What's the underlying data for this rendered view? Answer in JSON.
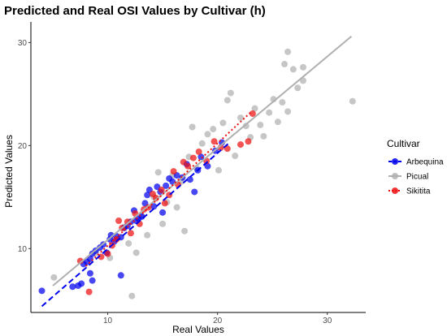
{
  "chart_data": {
    "type": "scatter",
    "title": "Predicted and Real OSI Values by Cultivar (h)",
    "xlabel": "Real Values",
    "ylabel": "Predicted Values",
    "xlim": [
      3,
      33.5
    ],
    "ylim": [
      3.8,
      32
    ],
    "xticks": [
      10,
      20,
      30
    ],
    "yticks": [
      10,
      20,
      30
    ],
    "grid": false,
    "legend_title": "Cultivar",
    "legend_position": "right",
    "series": [
      {
        "name": "Arbequina",
        "color": "#0000ee",
        "marker": "circle",
        "fit_line": {
          "style": "dashed",
          "x": [
            4,
            21
          ],
          "y": [
            4.4,
            20.2
          ]
        },
        "points": [
          [
            4,
            5.9
          ],
          [
            6.8,
            6.3
          ],
          [
            7.3,
            6.4
          ],
          [
            7.6,
            6.6
          ],
          [
            7.8,
            8.5
          ],
          [
            8.1,
            8.7
          ],
          [
            8.4,
            9.0
          ],
          [
            8.4,
            7.6
          ],
          [
            8.6,
            6.9
          ],
          [
            8.6,
            9.5
          ],
          [
            8.9,
            9.8
          ],
          [
            9.3,
            10.1
          ],
          [
            9.6,
            10.4
          ],
          [
            9.9,
            9.6
          ],
          [
            10.2,
            10.9
          ],
          [
            10.3,
            11.3
          ],
          [
            10.6,
            10.7
          ],
          [
            10.8,
            11.2
          ],
          [
            11.2,
            7.4
          ],
          [
            11.2,
            11.1
          ],
          [
            11.5,
            12.0
          ],
          [
            11.8,
            12.2
          ],
          [
            12.1,
            12.6
          ],
          [
            12.4,
            13.7
          ],
          [
            12.6,
            12.7
          ],
          [
            12.8,
            12.9
          ],
          [
            13.1,
            13.1
          ],
          [
            13.4,
            14.4
          ],
          [
            13.6,
            15.2
          ],
          [
            13.8,
            15.7
          ],
          [
            14.2,
            14.1
          ],
          [
            14.5,
            16.0
          ],
          [
            14.8,
            15.5
          ],
          [
            15.0,
            13.5
          ],
          [
            15.3,
            16.1
          ],
          [
            15.6,
            16.8
          ],
          [
            15.9,
            16.5
          ],
          [
            16.3,
            17.1
          ],
          [
            16.8,
            16.9
          ],
          [
            17.2,
            18.2
          ],
          [
            17.5,
            16.7
          ],
          [
            17.9,
            15.5
          ],
          [
            18.2,
            17.6
          ],
          [
            18.5,
            18.9
          ],
          [
            19.1,
            18.0
          ],
          [
            19.8,
            19.5
          ],
          [
            20.4,
            20.3
          ]
        ]
      },
      {
        "name": "Picual",
        "color": "#b0b0b0",
        "marker": "circle",
        "fit_line": {
          "style": "solid",
          "x": [
            5,
            32.2
          ],
          "y": [
            6.4,
            30.6
          ]
        },
        "points": [
          [
            5.1,
            7.2
          ],
          [
            8.9,
            9.6
          ],
          [
            10.2,
            9.1
          ],
          [
            11.5,
            12.1
          ],
          [
            11.9,
            10.5
          ],
          [
            12.2,
            5.4
          ],
          [
            12.6,
            9.6
          ],
          [
            13.1,
            13.2
          ],
          [
            13.6,
            11.3
          ],
          [
            14.2,
            15.0
          ],
          [
            14.6,
            17.4
          ],
          [
            15.0,
            12.4
          ],
          [
            15.4,
            14.5
          ],
          [
            15.9,
            17.1
          ],
          [
            16.3,
            14.0
          ],
          [
            16.7,
            16.5
          ],
          [
            17.0,
            11.7
          ],
          [
            17.4,
            18.9
          ],
          [
            17.7,
            21.8
          ],
          [
            18.1,
            17.8
          ],
          [
            18.6,
            20.2
          ],
          [
            19.1,
            21.1
          ],
          [
            19.6,
            21.6
          ],
          [
            20.1,
            17.6
          ],
          [
            20.5,
            22.2
          ],
          [
            20.9,
            24.4
          ],
          [
            21.2,
            25.1
          ],
          [
            21.6,
            19.0
          ],
          [
            22.1,
            22.7
          ],
          [
            22.6,
            21.9
          ],
          [
            23.0,
            20.8
          ],
          [
            23.4,
            23.6
          ],
          [
            23.9,
            22.0
          ],
          [
            24.2,
            20.9
          ],
          [
            24.7,
            23.2
          ],
          [
            25.1,
            24.5
          ],
          [
            25.5,
            22.3
          ],
          [
            25.9,
            24.2
          ],
          [
            26.4,
            23.3
          ],
          [
            26.1,
            27.9
          ],
          [
            26.4,
            29.1
          ],
          [
            26.9,
            27.4
          ],
          [
            27.3,
            25.6
          ],
          [
            27.8,
            27.6
          ],
          [
            27.8,
            26.3
          ],
          [
            32.3,
            24.3
          ]
        ]
      },
      {
        "name": "Sikitita",
        "color": "#ee1111",
        "marker": "circle",
        "fit_line": {
          "style": "dotted",
          "x": [
            8,
            23.1
          ],
          "y": [
            8.3,
            23.3
          ]
        },
        "points": [
          [
            7.5,
            8.8
          ],
          [
            8.3,
            5.8
          ],
          [
            9.4,
            9.2
          ],
          [
            10.0,
            9.5
          ],
          [
            10.4,
            10.3
          ],
          [
            10.8,
            10.9
          ],
          [
            11.0,
            12.7
          ],
          [
            11.3,
            12.0
          ],
          [
            11.8,
            12.6
          ],
          [
            12.1,
            11.5
          ],
          [
            12.5,
            13.4
          ],
          [
            12.9,
            12.4
          ],
          [
            13.3,
            13.8
          ],
          [
            13.7,
            14.0
          ],
          [
            14.1,
            15.3
          ],
          [
            14.4,
            14.9
          ],
          [
            14.9,
            15.7
          ],
          [
            15.2,
            14.4
          ],
          [
            15.6,
            15.2
          ],
          [
            16.0,
            17.5
          ],
          [
            16.4,
            16.2
          ],
          [
            16.9,
            18.4
          ],
          [
            17.3,
            18.0
          ],
          [
            17.8,
            18.8
          ],
          [
            18.3,
            19.4
          ],
          [
            19.0,
            18.5
          ],
          [
            19.7,
            20.4
          ],
          [
            20.3,
            19.8
          ],
          [
            20.9,
            19.7
          ],
          [
            22.1,
            20.1
          ],
          [
            22.8,
            20.4
          ],
          [
            23.2,
            23.1
          ]
        ]
      }
    ]
  }
}
